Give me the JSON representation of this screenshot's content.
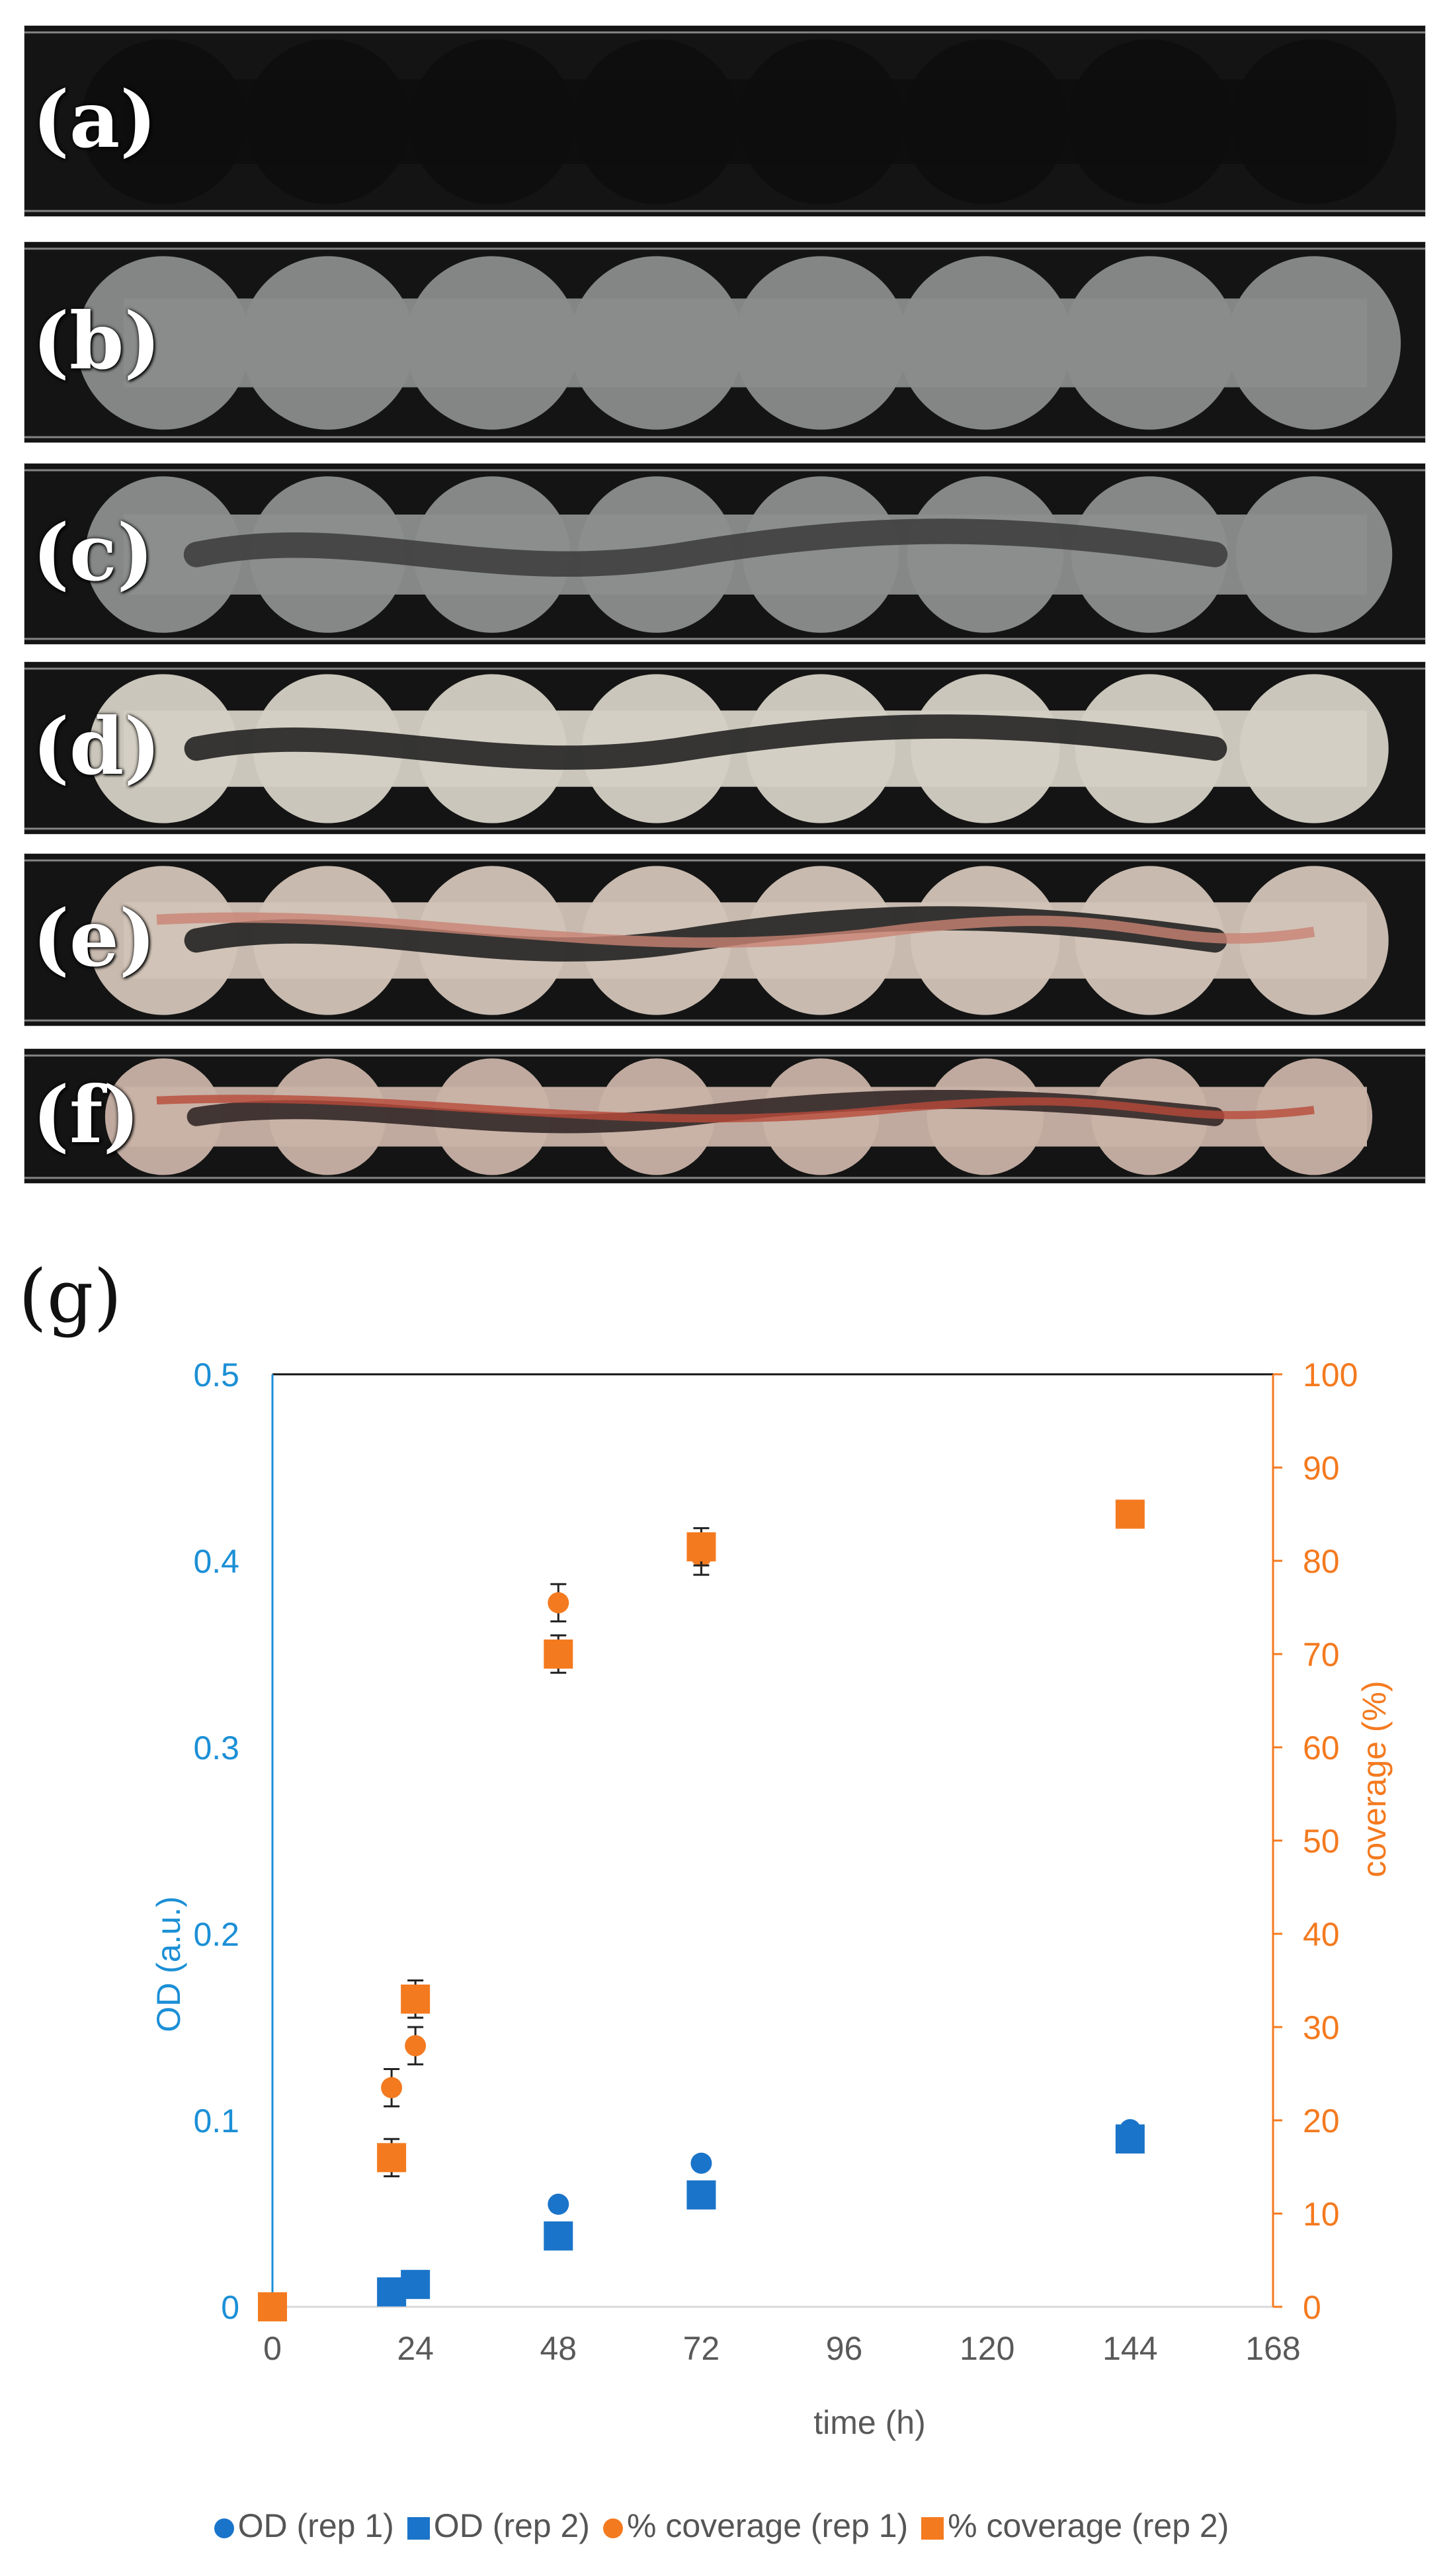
{
  "panels": [
    {
      "label": "(a)",
      "state": "empty"
    },
    {
      "label": "(b)",
      "state": "early"
    },
    {
      "label": "(c)",
      "state": "mid"
    },
    {
      "label": "(d)",
      "state": "full"
    },
    {
      "label": "(e)",
      "state": "pink"
    },
    {
      "label": "(f)",
      "state": "red"
    }
  ],
  "g_label": "(g)",
  "colors": {
    "od": "#1a74c9",
    "od_axis": "#1b8fd6",
    "coverage": "#f47a1f"
  },
  "chart_data": {
    "type": "scatter",
    "xlabel": "time (h)",
    "ylabel_left": "OD (a.u.)",
    "ylabel_right": "coverage (%)",
    "xlim": [
      0,
      168
    ],
    "ylim_left": [
      0,
      0.5
    ],
    "ylim_right": [
      0,
      100
    ],
    "x_ticks": [
      0,
      24,
      48,
      72,
      96,
      120,
      144,
      168
    ],
    "y_ticks_left": [
      0,
      0.1,
      0.2,
      0.3,
      0.4,
      0.5
    ],
    "y_ticks_right": [
      0,
      10,
      20,
      30,
      40,
      50,
      60,
      70,
      80,
      90,
      100
    ],
    "grid": false,
    "legend_position": "bottom",
    "series": [
      {
        "name": "OD (rep 1)",
        "axis": "left",
        "marker": "circle",
        "color": "#1a74c9",
        "x": [
          0,
          20,
          24,
          48,
          72,
          144
        ],
        "y": [
          0,
          0.01,
          0.012,
          0.055,
          0.077,
          0.095
        ]
      },
      {
        "name": "OD (rep 2)",
        "axis": "left",
        "marker": "square",
        "color": "#1a74c9",
        "x": [
          0,
          20,
          24,
          48,
          72,
          144
        ],
        "y": [
          0,
          0.008,
          0.012,
          0.038,
          0.06,
          0.09
        ]
      },
      {
        "name": "% coverage (rep 1)",
        "axis": "right",
        "marker": "circle",
        "color": "#f47a1f",
        "x": [
          0,
          20,
          24,
          48,
          72,
          144
        ],
        "y": [
          0,
          23.5,
          28,
          75.5,
          80.5,
          85
        ],
        "err": [
          0,
          2,
          2,
          2,
          2,
          1
        ]
      },
      {
        "name": "% coverage (rep 2)",
        "axis": "right",
        "marker": "square",
        "color": "#f47a1f",
        "x": [
          0,
          20,
          24,
          48,
          72,
          144
        ],
        "y": [
          0,
          16,
          33,
          70,
          81.5,
          85
        ],
        "err": [
          0,
          2,
          2,
          2,
          2,
          1
        ]
      }
    ]
  }
}
